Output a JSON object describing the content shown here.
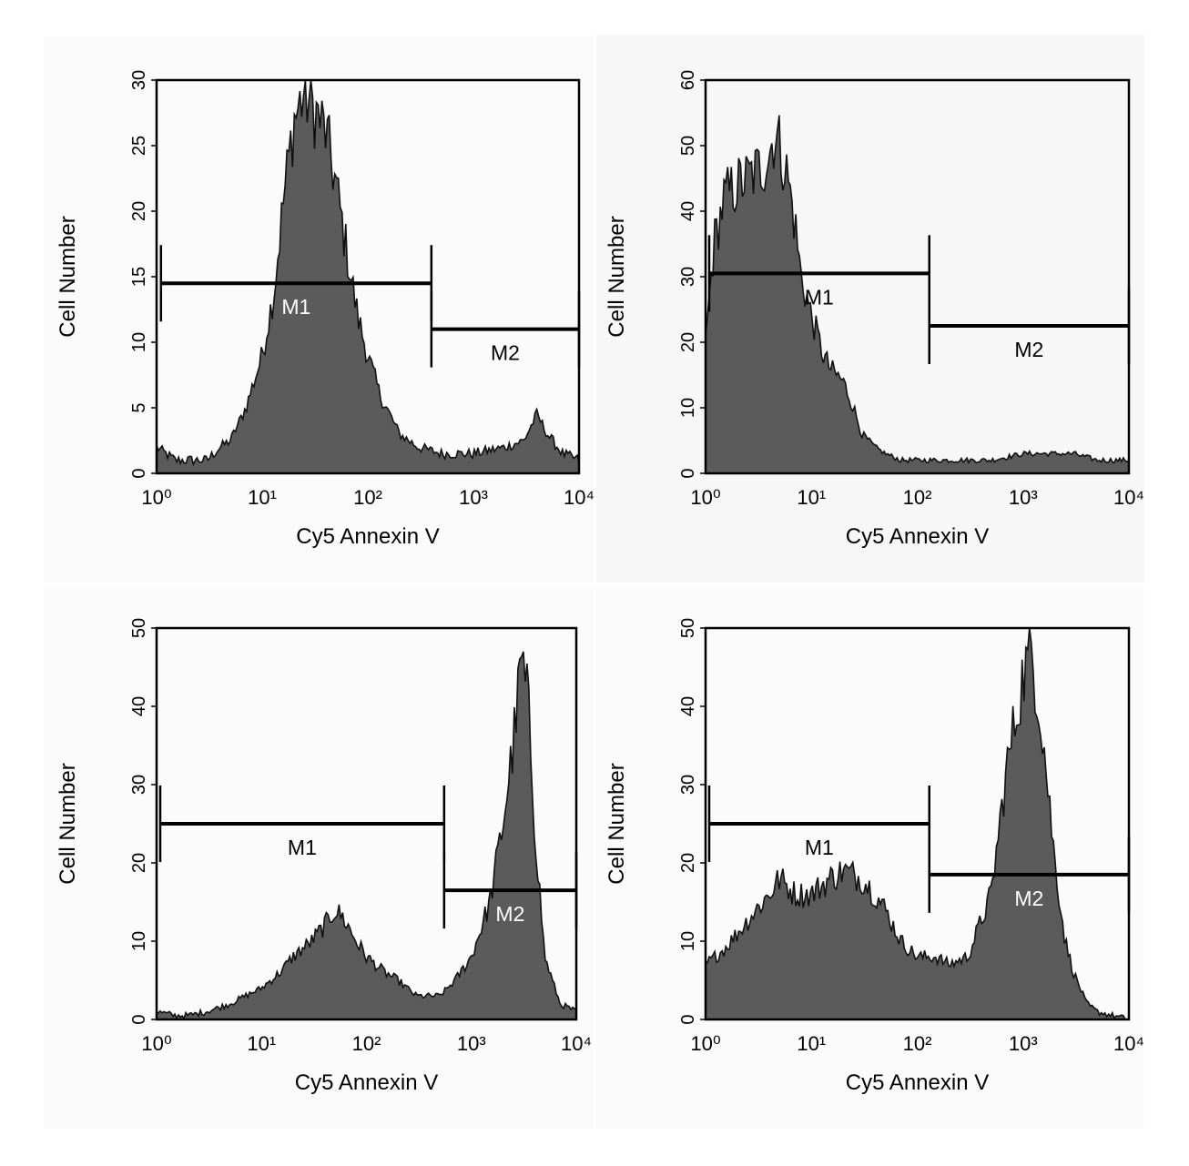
{
  "chart_data": [
    {
      "type": "area",
      "x_scale": "log",
      "xlim": [
        1,
        10000
      ],
      "ylim": [
        0,
        30
      ],
      "yticks": [
        0,
        5,
        10,
        15,
        20,
        25,
        30
      ],
      "xticks": [
        1,
        10,
        100,
        1000,
        10000
      ],
      "xlabel": "Cy5 Annexin V",
      "ylabel": "Cell Number",
      "x": [
        1,
        1.5,
        2,
        3,
        4,
        5,
        7,
        10,
        13,
        16,
        20,
        25,
        30,
        35,
        40,
        50,
        60,
        80,
        100,
        130,
        200,
        300,
        500,
        1000,
        2000,
        3000,
        4000,
        5000,
        7000,
        10000
      ],
      "values": [
        2,
        1,
        1,
        1,
        2,
        2.5,
        5,
        9,
        14,
        21,
        27,
        29,
        28,
        27,
        26,
        22,
        18,
        12,
        9,
        6,
        3,
        2,
        1.5,
        1.5,
        2,
        2.5,
        4.5,
        3,
        1.5,
        1
      ],
      "markers": [
        {
          "label": "M1",
          "start": 1.1,
          "end": 400,
          "y": 14.5
        },
        {
          "label": "M2",
          "start": 400,
          "end": 10000,
          "y": 11
        }
      ]
    },
    {
      "type": "area",
      "x_scale": "log",
      "xlim": [
        1,
        10000
      ],
      "ylim": [
        0,
        60
      ],
      "yticks": [
        0,
        10,
        20,
        30,
        40,
        50,
        60
      ],
      "xticks": [
        1,
        10,
        100,
        1000,
        10000
      ],
      "xlabel": "Cy5 Annexin V",
      "ylabel": "Cell Number",
      "x": [
        1,
        1.2,
        1.5,
        2,
        2.5,
        3,
        3.5,
        4,
        4.5,
        5,
        6,
        7,
        8,
        10,
        13,
        15,
        20,
        25,
        30,
        40,
        50,
        70,
        100,
        200,
        500,
        1000,
        2000,
        3000,
        5000,
        10000
      ],
      "values": [
        20,
        35,
        42,
        44,
        45,
        46,
        47,
        49,
        52,
        50,
        45,
        38,
        30,
        24,
        18,
        16,
        14,
        10,
        6,
        4,
        3,
        2,
        2,
        2,
        2,
        3,
        3,
        3,
        2,
        2
      ],
      "markers": [
        {
          "label": "M1",
          "start": 1,
          "end": 130,
          "y": 30.5
        },
        {
          "label": "M2",
          "start": 130,
          "end": 10000,
          "y": 22.5
        }
      ]
    },
    {
      "type": "area",
      "x_scale": "log",
      "xlim": [
        1,
        10000
      ],
      "ylim": [
        0,
        50
      ],
      "yticks": [
        0,
        10,
        20,
        30,
        40,
        50
      ],
      "xticks": [
        1,
        10,
        100,
        1000,
        10000
      ],
      "xlabel": "Cy5 Annexin V",
      "ylabel": "Cell Number",
      "x": [
        1,
        1.5,
        2,
        3,
        5,
        7,
        10,
        15,
        20,
        30,
        40,
        50,
        60,
        80,
        100,
        150,
        200,
        300,
        500,
        700,
        1000,
        1500,
        2000,
        2500,
        3000,
        3500,
        4000,
        5000,
        7000,
        10000
      ],
      "values": [
        1,
        0.5,
        0.5,
        1,
        2,
        3,
        4,
        6,
        8,
        10,
        12,
        14,
        13,
        10,
        8,
        6,
        5,
        3,
        3,
        5,
        8,
        15,
        25,
        35,
        46,
        40,
        25,
        8,
        2,
        1
      ],
      "markers": [
        {
          "label": "M1",
          "start": 1,
          "end": 550,
          "y": 25
        },
        {
          "label": "M2",
          "start": 550,
          "end": 10000,
          "y": 16.5
        }
      ]
    },
    {
      "type": "area",
      "x_scale": "log",
      "xlim": [
        1,
        10000
      ],
      "ylim": [
        0,
        50
      ],
      "yticks": [
        0,
        10,
        20,
        30,
        40,
        50
      ],
      "xticks": [
        1,
        10,
        100,
        1000,
        10000
      ],
      "xlabel": "Cy5 Annexin V",
      "ylabel": "Cell Number",
      "x": [
        1,
        1.5,
        2,
        3,
        4,
        5,
        7,
        10,
        15,
        20,
        30,
        40,
        50,
        70,
        100,
        150,
        200,
        300,
        500,
        700,
        1000,
        1200,
        1500,
        2000,
        2500,
        3000,
        4000,
        5000,
        7000,
        10000
      ],
      "values": [
        7,
        9,
        11,
        14,
        16,
        18,
        16,
        16,
        18,
        19,
        18,
        16,
        14,
        10,
        8,
        8,
        7,
        8,
        16,
        32,
        44,
        47,
        38,
        20,
        10,
        6,
        2,
        1,
        0.5,
        0
      ],
      "markers": [
        {
          "label": "M1",
          "start": 1,
          "end": 130,
          "y": 25
        },
        {
          "label": "M2",
          "start": 130,
          "end": 10000,
          "y": 18.5
        }
      ]
    }
  ]
}
